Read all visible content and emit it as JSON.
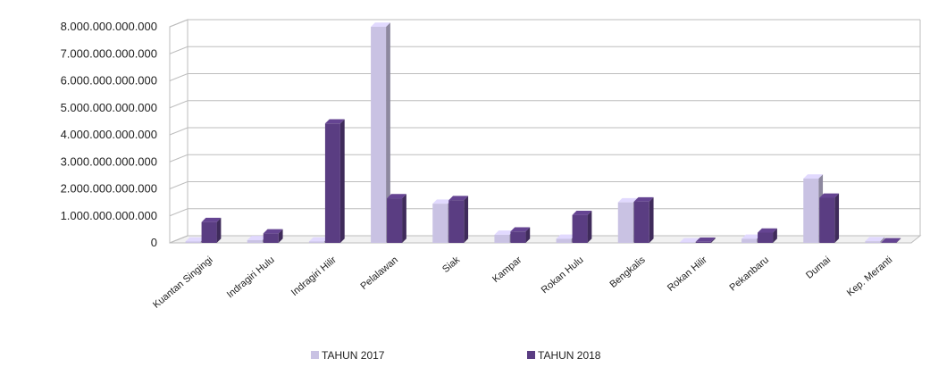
{
  "chart_data": {
    "type": "bar",
    "title": "",
    "xlabel": "",
    "ylabel": "",
    "categories": [
      "Kuantan Singingi",
      "Indragiri Hulu",
      "Indragiri Hilir",
      "Pelalawan",
      "Siak",
      "Kampar",
      "Rokan Hulu",
      "Bengkalis",
      "Rokan Hilir",
      "Pekanbaru",
      "Dumai",
      "Kep. Meranti"
    ],
    "series": [
      {
        "name": "TAHUN 2017",
        "color": "#c9c2e3",
        "values": [
          50000000000,
          100000000000,
          50000000000,
          8000000000000,
          1450000000000,
          300000000000,
          150000000000,
          1500000000000,
          20000000000,
          150000000000,
          2380000000000,
          60000000000
        ]
      },
      {
        "name": "TAHUN 2018",
        "color": "#5a3d82",
        "values": [
          770000000000,
          350000000000,
          4420000000000,
          1650000000000,
          1580000000000,
          420000000000,
          1030000000000,
          1530000000000,
          40000000000,
          380000000000,
          1670000000000,
          20000000000
        ]
      }
    ],
    "y_ticks": [
      "0",
      "1.000.000.000.000",
      "2.000.000.000.000",
      "3.000.000.000.000",
      "4.000.000.000.000",
      "5.000.000.000.000",
      "6.000.000.000.000",
      "7.000.000.000.000",
      "8.000.000.000.000"
    ],
    "ylim": [
      0,
      8000000000000
    ],
    "grid": true,
    "legend": "bottom"
  }
}
